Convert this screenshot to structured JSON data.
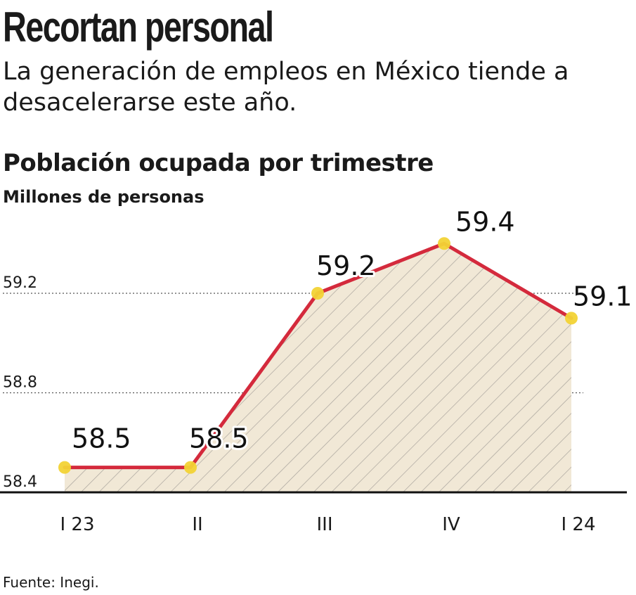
{
  "headline": "Recortan personal",
  "subtitle": "La generación de empleos en México tiende a desacelerarse este año.",
  "source": "Fuente: Inegi.",
  "colors": {
    "line": "#d42a3c",
    "marker": "#f2d335",
    "area_fill": "#f1e8d6",
    "hatch": "#a9a49c",
    "text": "#1a1a1a"
  },
  "chart_data": {
    "type": "area",
    "title": "Población ocupada por trimestre",
    "ylabel": "Millones de personas",
    "categories": [
      "I 23",
      "II",
      "III",
      "IV",
      "I 24"
    ],
    "series": [
      {
        "values": [
          58.5,
          58.5,
          59.2,
          59.4,
          59.1
        ]
      }
    ],
    "data_labels": [
      "58.5",
      "58.5",
      "59.2",
      "59.4",
      "59.1"
    ],
    "yticks": [
      "58.4",
      "58.8",
      "59.2"
    ],
    "ylim": [
      58.4,
      59.55
    ],
    "grid": "dotted horizontal",
    "legend": "none"
  }
}
